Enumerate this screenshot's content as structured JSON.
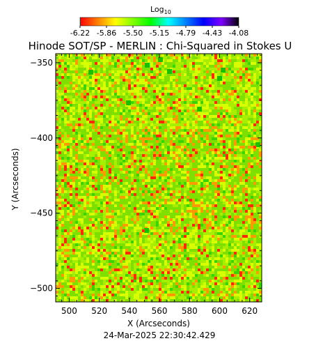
{
  "chart_data": {
    "type": "heatmap",
    "title": "Hinode SOT/SP - MERLIN : Chi-Squared in Stokes U",
    "xlabel": "X (Arcseconds)",
    "ylabel": "Y (Arcseconds)",
    "xlim": [
      491,
      628
    ],
    "ylim": [
      -509,
      -344
    ],
    "xticks": [
      500,
      520,
      540,
      560,
      580,
      600,
      620
    ],
    "yticks": [
      -350,
      -400,
      -450,
      -500
    ],
    "colorbar": {
      "label_base": "Log",
      "label_sub": "10",
      "range": [
        -6.22,
        -4.08
      ],
      "ticks": [
        "-6.22",
        "-5.86",
        "-5.50",
        "-5.15",
        "-4.79",
        "-4.43",
        "-4.08"
      ],
      "colors": [
        "#ff0000",
        "#ff8000",
        "#ffff00",
        "#80ff00",
        "#00ff00",
        "#00ffff",
        "#0080ff",
        "#0000ff",
        "#8000ff",
        "#000000"
      ]
    },
    "field_colors": [
      "#7fe000",
      "#a8ee00",
      "#d8ff00",
      "#ff9b00",
      "#ff2b00",
      "#3bd400",
      "#18c000"
    ]
  },
  "footer": {
    "date": "24-Mar-2025 22:30:42.429"
  }
}
